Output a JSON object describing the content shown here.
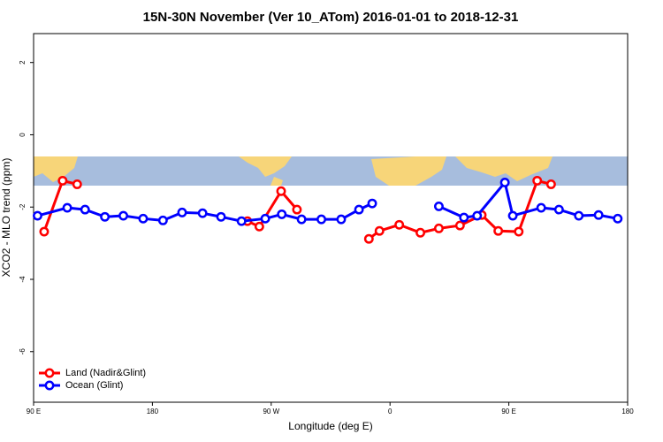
{
  "chart_data": {
    "type": "line",
    "title": "15N-30N November (Ver 10_ATom)   2016-01-01 to 2018-12-31",
    "x_label": "Longitude (deg E)",
    "y_label": "XCO2 - MLO trend (ppm)",
    "xlim": [
      90,
      540
    ],
    "ylim": [
      -7.4,
      2.8
    ],
    "xticks": [
      {
        "value": 90,
        "label": "90 E"
      },
      180,
      {
        "value": 270,
        "label": "90 W"
      },
      {
        "value": 360,
        "label": "0"
      },
      {
        "value": 450,
        "label": "90 E"
      },
      {
        "value": 540,
        "label": "180"
      }
    ],
    "yticks": [
      2,
      0,
      -2,
      -4,
      -6
    ],
    "legend": "bottom-left",
    "series": [
      {
        "name": "Land (Nadir&Glint)",
        "color": "#ff0000",
        "x": [
          98,
          112,
          123,
          null,
          252,
          261,
          277.5,
          289.5,
          null,
          344,
          352,
          367,
          383,
          397,
          413,
          429.5,
          442,
          457.5,
          471.5,
          482
        ],
        "values": [
          -2.68,
          -1.27,
          -1.37,
          null,
          -2.39,
          -2.54,
          -1.56,
          -2.07,
          null,
          -2.88,
          -2.66,
          -2.49,
          -2.71,
          -2.59,
          -2.51,
          -2.22,
          -2.66,
          -2.68,
          -1.27,
          -1.37
        ]
      },
      {
        "name": "Ocean (Glint)",
        "color": "#0000ff",
        "x": [
          93,
          115.5,
          129,
          144,
          158,
          173,
          188,
          202.5,
          218,
          232,
          247.5,
          265.5,
          278,
          293,
          308,
          323,
          336.5,
          346.5,
          null,
          397,
          416,
          426,
          447,
          453,
          474.5,
          488,
          503,
          518,
          532.5
        ],
        "values": [
          -2.24,
          -2.02,
          -2.07,
          -2.27,
          -2.24,
          -2.32,
          -2.37,
          -2.15,
          -2.17,
          -2.27,
          -2.39,
          -2.32,
          -2.2,
          -2.34,
          -2.34,
          -2.34,
          -2.07,
          -1.9,
          null,
          -1.98,
          -2.29,
          -2.24,
          -1.32,
          -2.24,
          -2.02,
          -2.07,
          -2.24,
          -2.22,
          -2.32
        ]
      }
    ]
  }
}
